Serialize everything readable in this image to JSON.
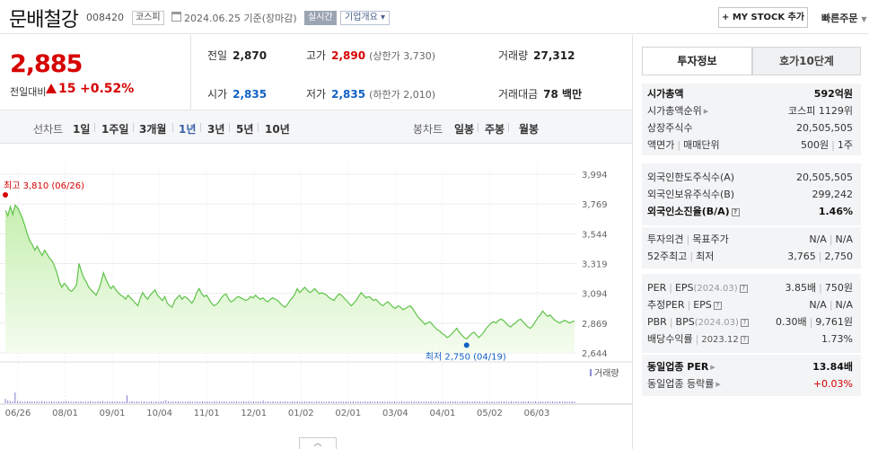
{
  "header": {
    "name": "문배철강",
    "code": "008420",
    "market": "코스피",
    "base_date": "2024.06.25 기준(장마감)",
    "realtime": "실시간",
    "company_info": "기업개요",
    "mystock": "+ MY STOCK 추가",
    "quick_order": "빠른주문"
  },
  "price": {
    "current": "2,885",
    "compare_label": "전일대비",
    "change": "15",
    "change_pct": "+0.52%",
    "prev_label": "전일",
    "prev": "2,870",
    "high_label": "고가",
    "high": "2,890",
    "upper_limit": "(상한가 3,730)",
    "volume_label": "거래량",
    "volume": "27,312",
    "open_label": "시가",
    "open": "2,835",
    "low_label": "저가",
    "low": "2,835",
    "lower_limit": "(하한가 2,010)",
    "amount_label": "거래대금",
    "amount": "78 백만"
  },
  "tabs": {
    "line_label": "선차트",
    "line_periods": [
      "1일",
      "1주일",
      "3개월",
      "1년",
      "3년",
      "5년",
      "10년"
    ],
    "active": "1년",
    "candle_label": "봉차트",
    "candle_periods": [
      "일봉",
      "주봉",
      "월봉"
    ]
  },
  "chart_data": {
    "type": "area",
    "y_ticks": [
      "3,994",
      "3,769",
      "3,544",
      "3,319",
      "3,094",
      "2,869",
      "2,644"
    ],
    "ylim": [
      2644,
      3994
    ],
    "x_ticks": [
      "06/26",
      "08/01",
      "09/01",
      "10/04",
      "11/01",
      "12/01",
      "01/02",
      "02/01",
      "03/04",
      "04/01",
      "05/02",
      "06/03"
    ],
    "high_annotation": "최고 3,810 (06/26)",
    "low_annotation": "최저 2,750 (04/19)",
    "volume_label": "거래량",
    "series": [
      {
        "values": [
          3720,
          3680,
          3750,
          3690,
          3760,
          3740,
          3700,
          3660,
          3600,
          3540,
          3490,
          3460,
          3420,
          3450,
          3410,
          3380,
          3420,
          3390,
          3360,
          3340,
          3300,
          3250,
          3180,
          3140,
          3170,
          3150,
          3120,
          3110,
          3130,
          3160,
          3320,
          3260,
          3210,
          3180,
          3140,
          3120,
          3100,
          3080,
          3120,
          3180,
          3250,
          3200,
          3160,
          3130,
          3150,
          3120,
          3100,
          3080,
          3070,
          3050,
          3080,
          3060,
          3040,
          3020,
          3000,
          3060,
          3100,
          3070,
          3050,
          3080,
          3100,
          3120,
          3080,
          3060,
          3040,
          3070,
          3020,
          3000,
          2990,
          3040,
          3060,
          3080,
          3050,
          3070,
          3060,
          3040,
          3020,
          3050,
          3100,
          3130,
          3090,
          3070,
          3080,
          3050,
          3020,
          3000,
          3010,
          3030,
          3060,
          3080,
          3090,
          3050,
          3030,
          3040,
          3060,
          3070,
          3060,
          3050,
          3040,
          3050,
          3070,
          3060,
          3080,
          3060,
          3050,
          3060,
          3040,
          3030,
          3050,
          3060,
          3050,
          3040,
          3020,
          3000,
          2990,
          3010,
          3040,
          3060,
          3090,
          3130,
          3100,
          3120,
          3140,
          3120,
          3100,
          3110,
          3130,
          3110,
          3090,
          3100,
          3090,
          3080,
          3060,
          3050,
          3040,
          3070,
          3090,
          3080,
          3060,
          3040,
          3020,
          3000,
          3020,
          3040,
          3070,
          3100,
          3080,
          3060,
          3070,
          3060,
          3040,
          3050,
          3030,
          3010,
          3000,
          3020,
          3030,
          3010,
          2990,
          2980,
          3000,
          2990,
          2970,
          2980,
          2990,
          3000,
          2980,
          2950,
          2920,
          2900,
          2880,
          2860,
          2870,
          2880,
          2860,
          2840,
          2820,
          2810,
          2790,
          2780,
          2760,
          2770,
          2790,
          2810,
          2830,
          2800,
          2780,
          2760,
          2750,
          2770,
          2790,
          2800,
          2780,
          2760,
          2780,
          2800,
          2830,
          2850,
          2870,
          2880,
          2870,
          2890,
          2900,
          2890,
          2870,
          2850,
          2840,
          2860,
          2870,
          2890,
          2900,
          2880,
          2860,
          2840,
          2830,
          2850,
          2880,
          2910,
          2930,
          2960,
          2940,
          2920,
          2930,
          2910,
          2890,
          2880,
          2870,
          2880,
          2890,
          2880,
          2870,
          2880,
          2885
        ]
      }
    ],
    "volume_relative": [
      0.12,
      0.08,
      0.06,
      0.05,
      0.3,
      0.06,
      0.05,
      0.04,
      0.04,
      0.05,
      0.05,
      0.04,
      0.04,
      0.05,
      0.04,
      0.06,
      0.05,
      0.04,
      0.04,
      0.05,
      0.04,
      0.04,
      0.05,
      0.04,
      0.05,
      0.06,
      0.05,
      0.04,
      0.04,
      0.05,
      0.04,
      0.05,
      0.04,
      0.04,
      0.05,
      0.06,
      0.04,
      0.04,
      0.05,
      0.05,
      0.06,
      0.04,
      0.05,
      0.04,
      0.05,
      0.04,
      0.05,
      0.04,
      0.04,
      0.05,
      0.22,
      0.04,
      0.06,
      0.04,
      0.05,
      0.04,
      0.04,
      0.05,
      0.04,
      0.04,
      0.05,
      0.04,
      0.05,
      0.04,
      0.05,
      0.06,
      0.08,
      0.05,
      0.04,
      0.05,
      0.04,
      0.05,
      0.04,
      0.04,
      0.04,
      0.05,
      0.05,
      0.04,
      0.04,
      0.05,
      0.04,
      0.05,
      0.04,
      0.05,
      0.04,
      0.04,
      0.05,
      0.04,
      0.05,
      0.04,
      0.05,
      0.04,
      0.04,
      0.05,
      0.04,
      0.05,
      0.04,
      0.04,
      0.05,
      0.04,
      0.05,
      0.04,
      0.05,
      0.04,
      0.05,
      0.04,
      0.07,
      0.04,
      0.05,
      0.04,
      0.05,
      0.04,
      0.04,
      0.05,
      0.04,
      0.05,
      0.04,
      0.04,
      0.05,
      0.04,
      0.05,
      0.04,
      0.04,
      0.05,
      0.04,
      0.05,
      0.04,
      0.04,
      0.05,
      0.04,
      0.05,
      0.04,
      0.04,
      0.05,
      0.04,
      0.05,
      0.04,
      0.04,
      0.05,
      0.04,
      0.05,
      0.04,
      0.04,
      0.05,
      0.04,
      0.05,
      0.04,
      0.04,
      0.05,
      0.04,
      0.05,
      0.04,
      0.04,
      0.05,
      0.04,
      0.05,
      0.04,
      0.04,
      0.05,
      0.04,
      0.05,
      0.04,
      0.04,
      0.05,
      0.04,
      0.05,
      0.04,
      0.04,
      0.05,
      0.04,
      0.05,
      0.04,
      0.04,
      0.05,
      0.04,
      0.05,
      0.04,
      0.04,
      0.05,
      0.04,
      0.05,
      0.04,
      0.04,
      0.05,
      0.04,
      0.05,
      0.04,
      0.04,
      0.05,
      0.04,
      0.05,
      0.04,
      0.04,
      0.05,
      0.04,
      0.05,
      0.04,
      0.04,
      0.05,
      0.04,
      0.05,
      0.04,
      0.04,
      0.05,
      0.04,
      0.05,
      0.04,
      0.04,
      0.05,
      0.04,
      0.05,
      0.04,
      0.04,
      0.05,
      0.04,
      0.05,
      0.04,
      0.04,
      0.05,
      0.04,
      0.05,
      0.04,
      0.04,
      0.05,
      0.04,
      0.05,
      0.04,
      0.04,
      0.05,
      0.04,
      0.05,
      0.04,
      0.04,
      0.05,
      0.04
    ]
  },
  "info": {
    "tabs": [
      "투자정보",
      "호가10단계"
    ],
    "block1": [
      {
        "k": "시가총액",
        "v": "592억원",
        "bold": true
      },
      {
        "k": "시가총액순위",
        "v": "코스피 1129위",
        "arrow": true
      },
      {
        "k": "상장주식수",
        "v": "20,505,505"
      },
      {
        "k": "액면가",
        "k2": "매매단위",
        "v": "500원",
        "v2": "1주"
      }
    ],
    "block2": [
      {
        "k": "외국인한도주식수(A)",
        "v": "20,505,505"
      },
      {
        "k": "외국인보유주식수(B)",
        "v": "299,242"
      },
      {
        "k": "외국인소진율(B/A)",
        "v": "1.46%",
        "bold": true,
        "q": true
      }
    ],
    "block3": [
      {
        "k": "투자의견",
        "k2": "목표주가",
        "v": "N/A",
        "v2": "N/A"
      },
      {
        "k": "52주최고",
        "k2": "최저",
        "v": "3,765",
        "v2": "2,750"
      }
    ],
    "block4": [
      {
        "k": "PER",
        "k2": "EPS",
        "sub": "(2024.03)",
        "v": "3.85배",
        "v2": "750원",
        "q": true
      },
      {
        "k": "추정PER",
        "k2": "EPS",
        "v": "N/A",
        "v2": "N/A",
        "q": true
      },
      {
        "k": "PBR",
        "k2": "BPS",
        "sub": "(2024.03)",
        "v": "0.30배",
        "v2": "9,761원",
        "q": true
      },
      {
        "k": "배당수익률",
        "sub2": "2023.12",
        "v": "1.73%",
        "q": true
      }
    ],
    "block5": [
      {
        "k": "동일업종 PER",
        "v": "13.84배",
        "bold": true,
        "arrow": true
      },
      {
        "k": "동일업종 등락률",
        "v": "+0.03%",
        "arrow": true,
        "red": true
      }
    ]
  },
  "colors": {
    "up": "#d60000",
    "down": "#1261c4",
    "line": "#5fc24a",
    "fill_top": "#c6efb0",
    "fill_bottom": "#f4fcef"
  }
}
